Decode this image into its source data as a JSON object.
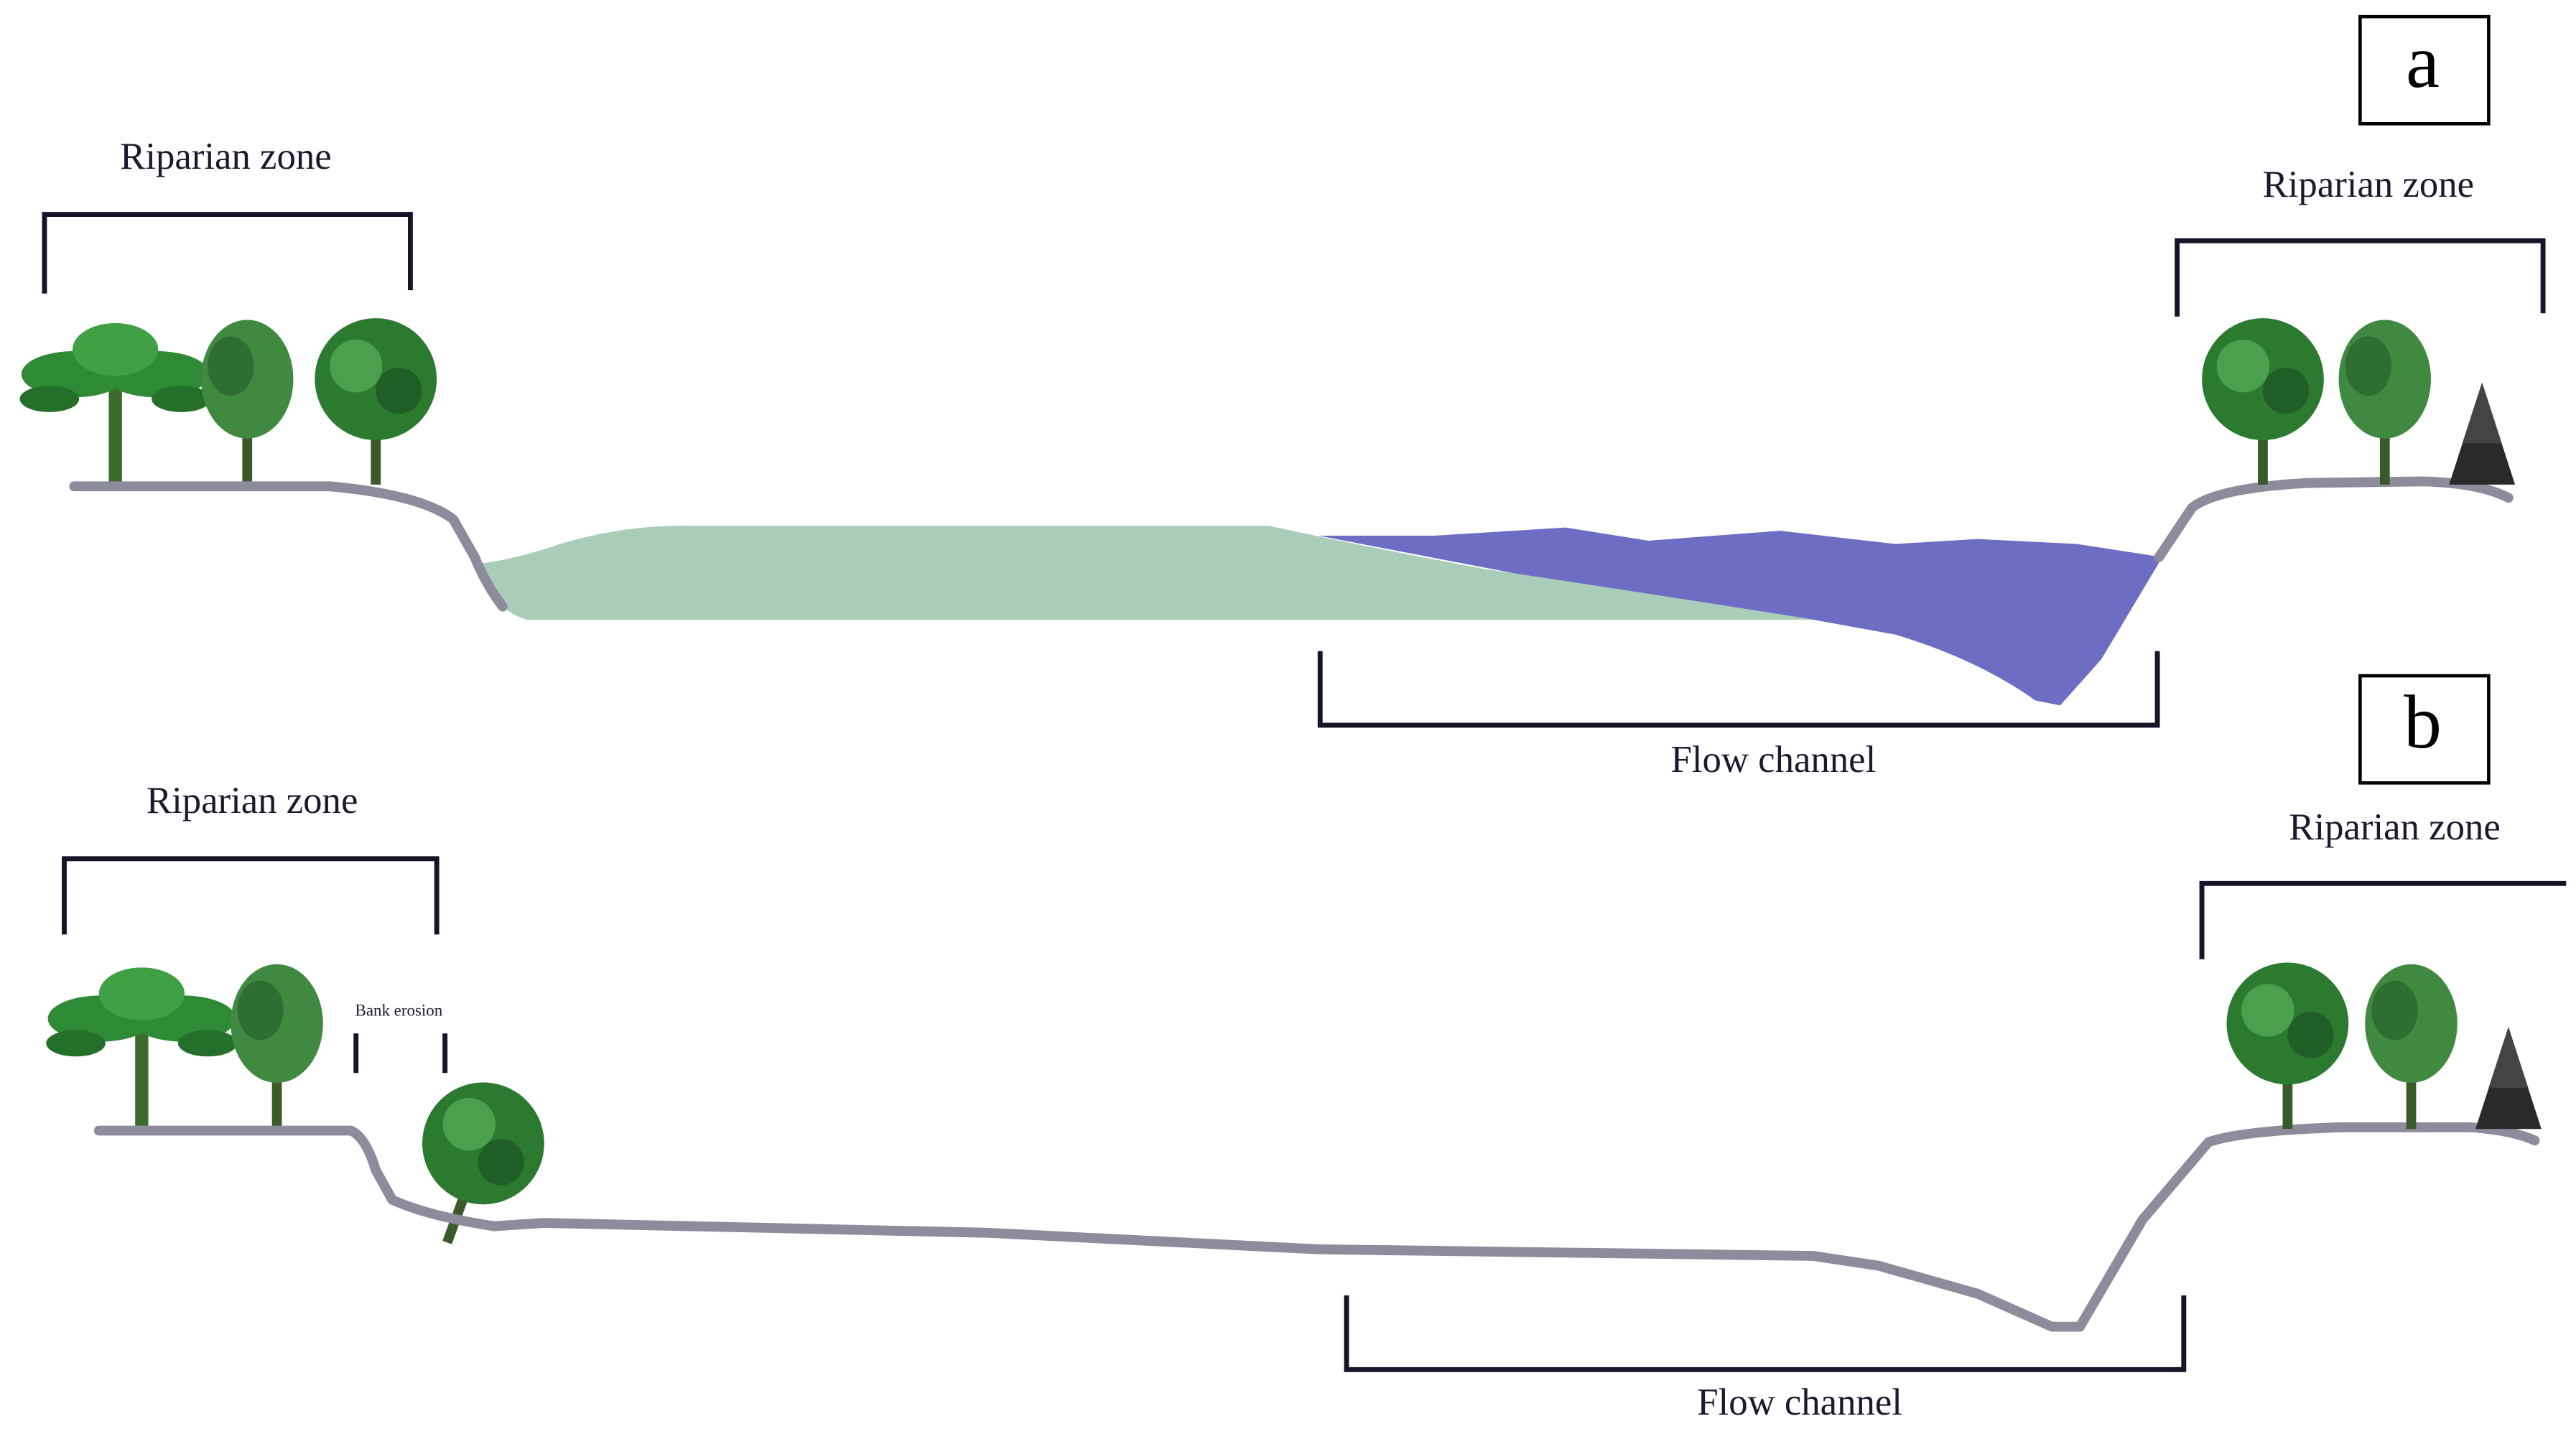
{
  "panels": [
    {
      "label": "a",
      "left_zone": "Riparian zone",
      "right_zone": "Riparian zone",
      "channel": "Flow channel"
    },
    {
      "label": "b",
      "left_zone": "Riparian zone",
      "right_zone": "Riparian zone",
      "channel": "Flow channel",
      "annotation": "Bank erosion"
    }
  ]
}
